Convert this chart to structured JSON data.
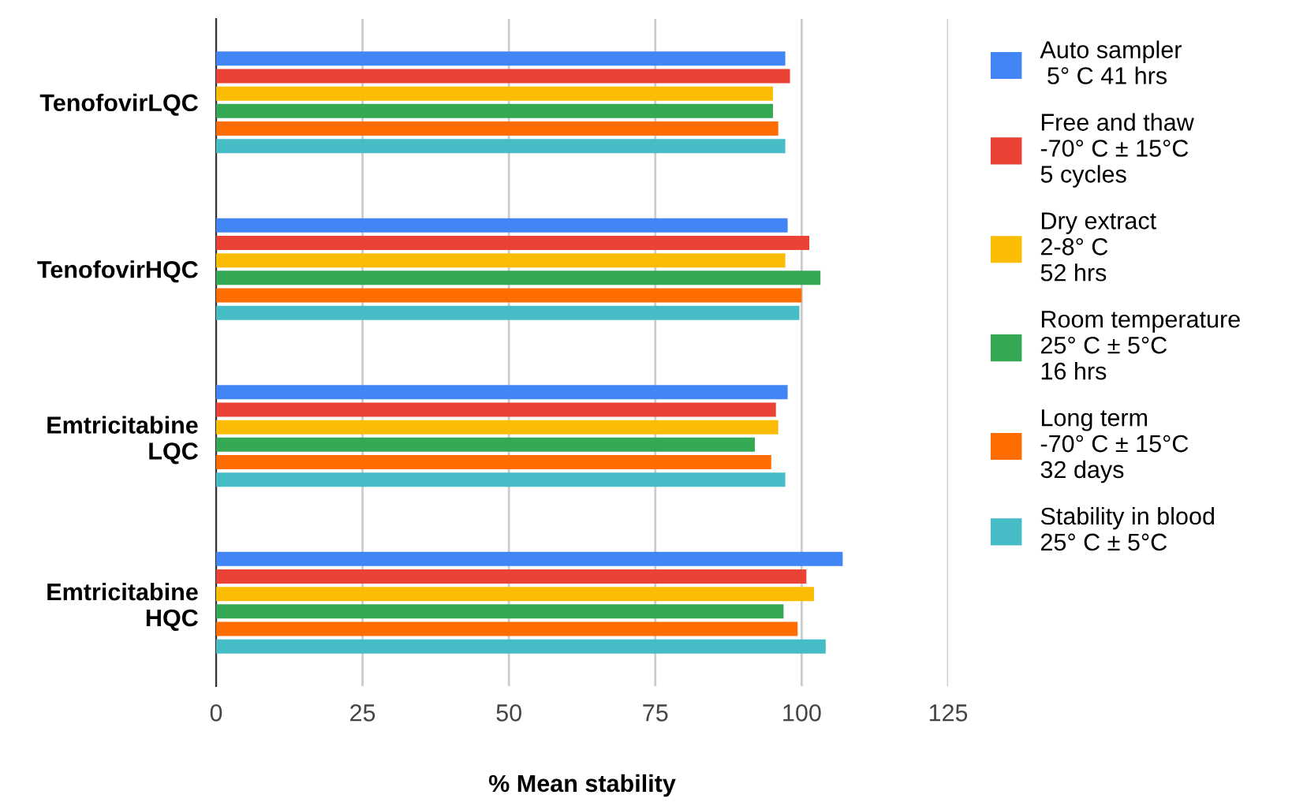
{
  "chart_data": {
    "type": "bar",
    "orientation": "horizontal",
    "xlabel": "% Mean stability",
    "categories": [
      "TenofovirLQC",
      "TenofovirHQC",
      "Emtricitabine\nLQC",
      "Emtricitabine\nHQC"
    ],
    "series": [
      {
        "name": "Auto sampler\n 5° C 41 hrs",
        "color": "#4285f4",
        "values": [
          97.2,
          97.6,
          97.6,
          107.0
        ]
      },
      {
        "name": "Free and thaw\n-70° C ± 15°C\n5 cycles",
        "color": "#ea4335",
        "values": [
          98.0,
          101.3,
          95.6,
          100.8
        ]
      },
      {
        "name": "Dry extract\n2-8° C\n52 hrs",
        "color": "#fbbc04",
        "values": [
          95.1,
          97.2,
          96.0,
          102.1
        ]
      },
      {
        "name": "Room temperature\n25° C ± 5°C\n16 hrs",
        "color": "#34a853",
        "values": [
          95.1,
          103.2,
          92.0,
          96.9
        ]
      },
      {
        "name": "Long term\n-70° C ± 15°C\n32 days",
        "color": "#ff6d01",
        "values": [
          96.0,
          100.0,
          94.8,
          99.3
        ]
      },
      {
        "name": "Stability in blood\n25° C ± 5°C",
        "color": "#46bdc6",
        "values": [
          97.2,
          99.6,
          97.2,
          104.1
        ]
      }
    ],
    "xlim": [
      0,
      125
    ],
    "xticks": [
      0,
      25,
      50,
      75,
      100,
      125
    ],
    "grid": "x",
    "legend": "right"
  }
}
